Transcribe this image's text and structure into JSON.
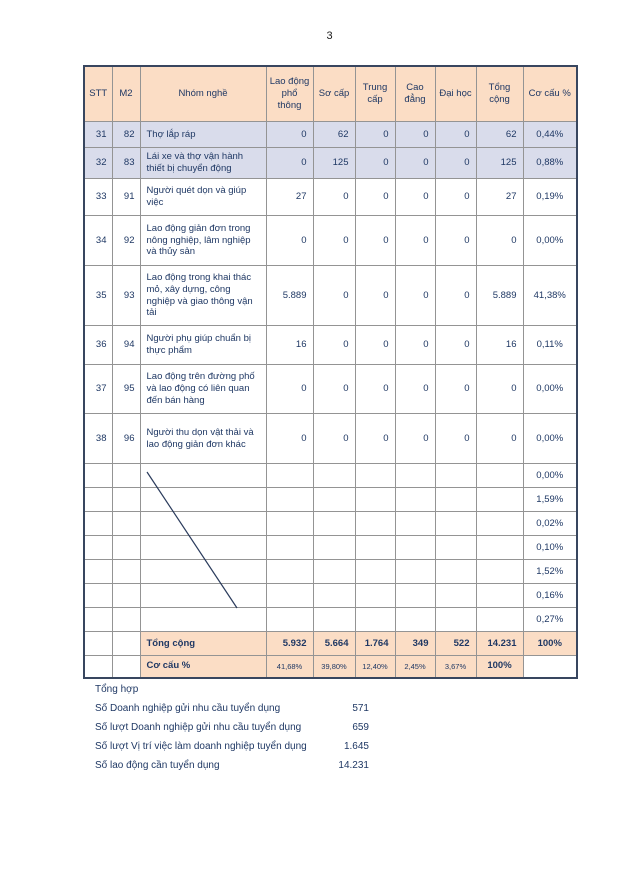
{
  "page": {
    "number": "3"
  },
  "table": {
    "headers": [
      "STT",
      "M2",
      "Nhóm nghề",
      "Lao động phổ thông",
      "Sơ cấp",
      "Trung cấp",
      "Cao đẳng",
      "Đại học",
      "Tổng cộng",
      "Cơ cấu %"
    ],
    "rows": [
      {
        "stt": "31",
        "m2": "82",
        "name": "Thợ lắp ráp",
        "values": [
          "0",
          "62",
          "0",
          "0",
          "0",
          "62"
        ],
        "share": "0,44%",
        "highlight": true
      },
      {
        "stt": "32",
        "m2": "83",
        "name": "Lái xe và thợ vận hành thiết bị chuyển động",
        "values": [
          "0",
          "125",
          "0",
          "0",
          "0",
          "125"
        ],
        "share": "0,88%",
        "highlight": true
      },
      {
        "stt": "33",
        "m2": "91",
        "name": "Người quét dọn và giúp việc",
        "values": [
          "27",
          "0",
          "0",
          "0",
          "0",
          "27"
        ],
        "share": "0,19%",
        "highlight": false
      },
      {
        "stt": "34",
        "m2": "92",
        "name": "Lao động giản đơn trong nông nghiệp, lâm nghiệp và thủy sản",
        "values": [
          "0",
          "0",
          "0",
          "0",
          "0",
          "0"
        ],
        "share": "0,00%",
        "highlight": false
      },
      {
        "stt": "35",
        "m2": "93",
        "name": "Lao động trong khai thác mỏ, xây dựng, công nghiệp và giao thông vận tải",
        "values": [
          "5.889",
          "0",
          "0",
          "0",
          "0",
          "5.889"
        ],
        "share": "41,38%",
        "highlight": false
      },
      {
        "stt": "36",
        "m2": "94",
        "name": "Người phụ giúp chuẩn bị thực phẩm",
        "values": [
          "16",
          "0",
          "0",
          "0",
          "0",
          "16"
        ],
        "share": "0,11%",
        "highlight": false
      },
      {
        "stt": "37",
        "m2": "95",
        "name": "Lao động trên đường phố và lao động có liên quan đến bán hàng",
        "values": [
          "0",
          "0",
          "0",
          "0",
          "0",
          "0"
        ],
        "share": "0,00%",
        "highlight": false
      },
      {
        "stt": "38",
        "m2": "96",
        "name": "Người thu dọn vật thải và lao động giản đơn khác",
        "values": [
          "0",
          "0",
          "0",
          "0",
          "0",
          "0"
        ],
        "share": "0,00%",
        "highlight": false
      }
    ],
    "empty_row_shares": [
      "0,00%",
      "1,59%",
      "0,02%",
      "0,10%",
      "1,52%",
      "0,16%",
      "0,27%"
    ],
    "total_row": {
      "label": "Tổng cộng",
      "values": [
        "5.932",
        "5.664",
        "1.764",
        "349",
        "522",
        "14.231"
      ],
      "share": "100%"
    },
    "ratio_row": {
      "label": "Cơ cấu %",
      "values": [
        "41,68%",
        "39,80%",
        "12,40%",
        "2,45%",
        "3,67%"
      ],
      "total": "100%",
      "share": ""
    }
  },
  "summary": {
    "title": "Tổng hợp",
    "items": [
      {
        "label": "Số Doanh nghiệp gửi nhu cầu tuyển dụng",
        "value": "571"
      },
      {
        "label": "Số lượt Doanh nghiệp gửi nhu cầu tuyển dụng",
        "value": "659"
      },
      {
        "label": "Số lượt Vị trí việc làm doanh nghiệp tuyển dụng",
        "value": "1.645"
      },
      {
        "label": "Số lao động cần tuyển dụng",
        "value": "14.231"
      }
    ]
  },
  "colors": {
    "header_fill": "#FBDDC5",
    "highlight_fill": "#D9DCEB",
    "text_navy": "#1F3864",
    "inner_border": "#949494",
    "outer_border": "#38465F"
  }
}
